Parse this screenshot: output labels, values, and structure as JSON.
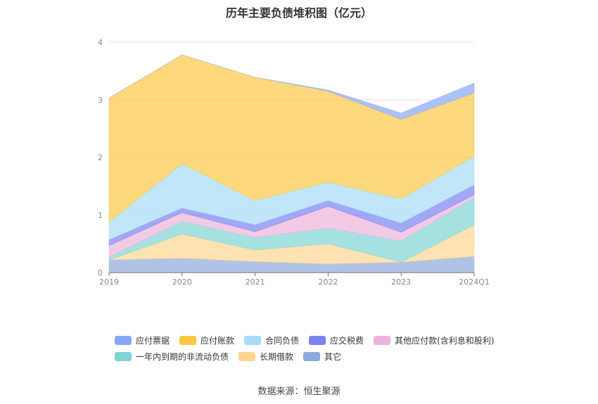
{
  "source": "数据来源：恒生聚源",
  "chart_data": {
    "type": "area",
    "stacked": true,
    "title": "历年主要负债堆积图（亿元）",
    "categories": [
      "2019",
      "2020",
      "2021",
      "2022",
      "2023",
      "2024Q1"
    ],
    "ylim": [
      0,
      4
    ],
    "yticks": [
      "0",
      "1",
      "2",
      "3",
      "4"
    ],
    "grid": true,
    "legend_position": "bottom",
    "series": [
      {
        "name": "其它",
        "color": "#8eaadb",
        "values": [
          0.22,
          0.25,
          0.19,
          0.15,
          0.18,
          0.28
        ]
      },
      {
        "name": "长期借款",
        "color": "#ffd591",
        "values": [
          0.0,
          0.42,
          0.2,
          0.35,
          0.0,
          0.55
        ]
      },
      {
        "name": "一年内到期的非流动负债",
        "color": "#80d4d4",
        "values": [
          0.05,
          0.22,
          0.22,
          0.27,
          0.37,
          0.47
        ]
      },
      {
        "name": "其他应付款(含利息和股利)",
        "color": "#eeb3dc",
        "values": [
          0.2,
          0.15,
          0.1,
          0.38,
          0.15,
          0.05
        ]
      },
      {
        "name": "应交税费",
        "color": "#7b82f2",
        "values": [
          0.1,
          0.08,
          0.12,
          0.1,
          0.16,
          0.17
        ]
      },
      {
        "name": "合同负债",
        "color": "#a6dcf7",
        "values": [
          0.31,
          0.77,
          0.42,
          0.32,
          0.42,
          0.5
        ]
      },
      {
        "name": "应付账款",
        "color": "#fcc844",
        "values": [
          2.15,
          1.89,
          2.14,
          1.58,
          1.38,
          1.1
        ]
      },
      {
        "name": "应付票据",
        "color": "#87a6f6",
        "values": [
          0.0,
          0.0,
          0.0,
          0.02,
          0.11,
          0.17
        ]
      }
    ]
  }
}
